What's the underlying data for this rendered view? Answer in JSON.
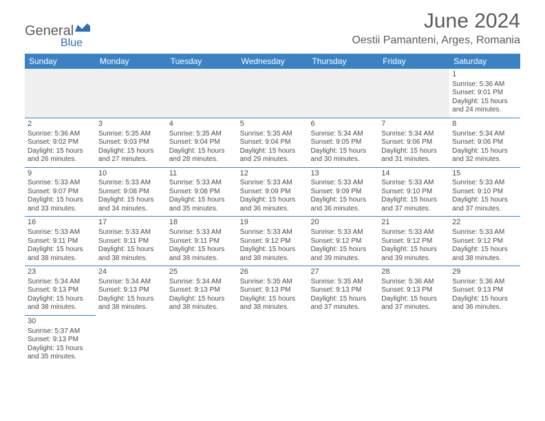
{
  "logo": {
    "text1": "General",
    "text2": "Blue"
  },
  "title": "June 2024",
  "location": "Oestii Pamanteni, Arges, Romania",
  "colors": {
    "header_bg": "#3b82c4",
    "header_text": "#ffffff",
    "border": "#3b82c4",
    "text": "#4a4a4a",
    "title_text": "#5b5b5b",
    "empty_bg": "#f0f0f0",
    "logo_gray": "#5a5a5a",
    "logo_blue": "#2f6fb0"
  },
  "day_names": [
    "Sunday",
    "Monday",
    "Tuesday",
    "Wednesday",
    "Thursday",
    "Friday",
    "Saturday"
  ],
  "weeks": [
    [
      null,
      null,
      null,
      null,
      null,
      null,
      {
        "n": "1",
        "sr": "Sunrise: 5:36 AM",
        "ss": "Sunset: 9:01 PM",
        "d1": "Daylight: 15 hours",
        "d2": "and 24 minutes."
      }
    ],
    [
      {
        "n": "2",
        "sr": "Sunrise: 5:36 AM",
        "ss": "Sunset: 9:02 PM",
        "d1": "Daylight: 15 hours",
        "d2": "and 26 minutes."
      },
      {
        "n": "3",
        "sr": "Sunrise: 5:35 AM",
        "ss": "Sunset: 9:03 PM",
        "d1": "Daylight: 15 hours",
        "d2": "and 27 minutes."
      },
      {
        "n": "4",
        "sr": "Sunrise: 5:35 AM",
        "ss": "Sunset: 9:04 PM",
        "d1": "Daylight: 15 hours",
        "d2": "and 28 minutes."
      },
      {
        "n": "5",
        "sr": "Sunrise: 5:35 AM",
        "ss": "Sunset: 9:04 PM",
        "d1": "Daylight: 15 hours",
        "d2": "and 29 minutes."
      },
      {
        "n": "6",
        "sr": "Sunrise: 5:34 AM",
        "ss": "Sunset: 9:05 PM",
        "d1": "Daylight: 15 hours",
        "d2": "and 30 minutes."
      },
      {
        "n": "7",
        "sr": "Sunrise: 5:34 AM",
        "ss": "Sunset: 9:06 PM",
        "d1": "Daylight: 15 hours",
        "d2": "and 31 minutes."
      },
      {
        "n": "8",
        "sr": "Sunrise: 5:34 AM",
        "ss": "Sunset: 9:06 PM",
        "d1": "Daylight: 15 hours",
        "d2": "and 32 minutes."
      }
    ],
    [
      {
        "n": "9",
        "sr": "Sunrise: 5:33 AM",
        "ss": "Sunset: 9:07 PM",
        "d1": "Daylight: 15 hours",
        "d2": "and 33 minutes."
      },
      {
        "n": "10",
        "sr": "Sunrise: 5:33 AM",
        "ss": "Sunset: 9:08 PM",
        "d1": "Daylight: 15 hours",
        "d2": "and 34 minutes."
      },
      {
        "n": "11",
        "sr": "Sunrise: 5:33 AM",
        "ss": "Sunset: 9:08 PM",
        "d1": "Daylight: 15 hours",
        "d2": "and 35 minutes."
      },
      {
        "n": "12",
        "sr": "Sunrise: 5:33 AM",
        "ss": "Sunset: 9:09 PM",
        "d1": "Daylight: 15 hours",
        "d2": "and 36 minutes."
      },
      {
        "n": "13",
        "sr": "Sunrise: 5:33 AM",
        "ss": "Sunset: 9:09 PM",
        "d1": "Daylight: 15 hours",
        "d2": "and 36 minutes."
      },
      {
        "n": "14",
        "sr": "Sunrise: 5:33 AM",
        "ss": "Sunset: 9:10 PM",
        "d1": "Daylight: 15 hours",
        "d2": "and 37 minutes."
      },
      {
        "n": "15",
        "sr": "Sunrise: 5:33 AM",
        "ss": "Sunset: 9:10 PM",
        "d1": "Daylight: 15 hours",
        "d2": "and 37 minutes."
      }
    ],
    [
      {
        "n": "16",
        "sr": "Sunrise: 5:33 AM",
        "ss": "Sunset: 9:11 PM",
        "d1": "Daylight: 15 hours",
        "d2": "and 38 minutes."
      },
      {
        "n": "17",
        "sr": "Sunrise: 5:33 AM",
        "ss": "Sunset: 9:11 PM",
        "d1": "Daylight: 15 hours",
        "d2": "and 38 minutes."
      },
      {
        "n": "18",
        "sr": "Sunrise: 5:33 AM",
        "ss": "Sunset: 9:11 PM",
        "d1": "Daylight: 15 hours",
        "d2": "and 38 minutes."
      },
      {
        "n": "19",
        "sr": "Sunrise: 5:33 AM",
        "ss": "Sunset: 9:12 PM",
        "d1": "Daylight: 15 hours",
        "d2": "and 38 minutes."
      },
      {
        "n": "20",
        "sr": "Sunrise: 5:33 AM",
        "ss": "Sunset: 9:12 PM",
        "d1": "Daylight: 15 hours",
        "d2": "and 39 minutes."
      },
      {
        "n": "21",
        "sr": "Sunrise: 5:33 AM",
        "ss": "Sunset: 9:12 PM",
        "d1": "Daylight: 15 hours",
        "d2": "and 39 minutes."
      },
      {
        "n": "22",
        "sr": "Sunrise: 5:33 AM",
        "ss": "Sunset: 9:12 PM",
        "d1": "Daylight: 15 hours",
        "d2": "and 38 minutes."
      }
    ],
    [
      {
        "n": "23",
        "sr": "Sunrise: 5:34 AM",
        "ss": "Sunset: 9:13 PM",
        "d1": "Daylight: 15 hours",
        "d2": "and 38 minutes."
      },
      {
        "n": "24",
        "sr": "Sunrise: 5:34 AM",
        "ss": "Sunset: 9:13 PM",
        "d1": "Daylight: 15 hours",
        "d2": "and 38 minutes."
      },
      {
        "n": "25",
        "sr": "Sunrise: 5:34 AM",
        "ss": "Sunset: 9:13 PM",
        "d1": "Daylight: 15 hours",
        "d2": "and 38 minutes."
      },
      {
        "n": "26",
        "sr": "Sunrise: 5:35 AM",
        "ss": "Sunset: 9:13 PM",
        "d1": "Daylight: 15 hours",
        "d2": "and 38 minutes."
      },
      {
        "n": "27",
        "sr": "Sunrise: 5:35 AM",
        "ss": "Sunset: 9:13 PM",
        "d1": "Daylight: 15 hours",
        "d2": "and 37 minutes."
      },
      {
        "n": "28",
        "sr": "Sunrise: 5:36 AM",
        "ss": "Sunset: 9:13 PM",
        "d1": "Daylight: 15 hours",
        "d2": "and 37 minutes."
      },
      {
        "n": "29",
        "sr": "Sunrise: 5:36 AM",
        "ss": "Sunset: 9:13 PM",
        "d1": "Daylight: 15 hours",
        "d2": "and 36 minutes."
      }
    ],
    [
      {
        "n": "30",
        "sr": "Sunrise: 5:37 AM",
        "ss": "Sunset: 9:13 PM",
        "d1": "Daylight: 15 hours",
        "d2": "and 35 minutes."
      },
      null,
      null,
      null,
      null,
      null,
      null
    ]
  ]
}
